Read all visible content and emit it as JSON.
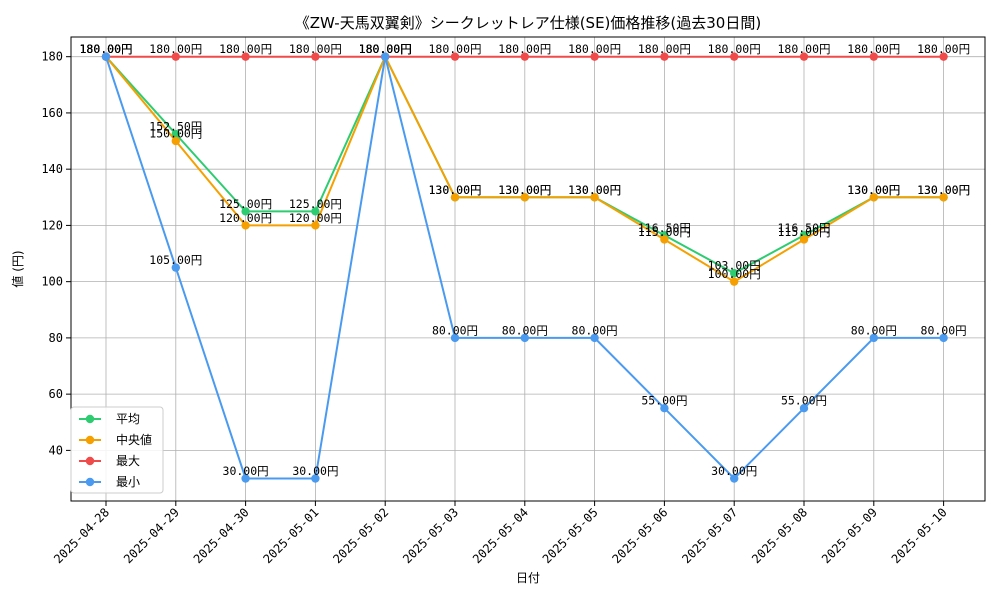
{
  "chart_data": {
    "type": "line",
    "title": "《ZW-天馬双翼剣》シークレットレア仕様(SE)価格推移(過去30日間)",
    "xlabel": "日付",
    "ylabel": "値 (円)",
    "x": [
      "2025-04-28",
      "2025-04-29",
      "2025-04-30",
      "2025-05-01",
      "2025-05-02",
      "2025-05-03",
      "2025-05-04",
      "2025-05-05",
      "2025-05-06",
      "2025-05-07",
      "2025-05-08",
      "2025-05-09",
      "2025-05-10"
    ],
    "ylim": [
      22,
      187
    ],
    "yticks": [
      40,
      60,
      80,
      100,
      120,
      140,
      160,
      180
    ],
    "grid": true,
    "legend_position": "lower-left",
    "value_suffix": "円",
    "series": [
      {
        "name": "平均",
        "color": "#2ecc71",
        "values": [
          180,
          152.5,
          125,
          125,
          180,
          130,
          130,
          130,
          116.5,
          103,
          116.5,
          130,
          130
        ]
      },
      {
        "name": "中央値",
        "color": "#f5a000",
        "values": [
          180,
          150,
          120,
          120,
          180,
          130,
          130,
          130,
          115,
          100,
          115,
          130,
          130
        ]
      },
      {
        "name": "最大",
        "color": "#f04a4a",
        "values": [
          180,
          180,
          180,
          180,
          180,
          180,
          180,
          180,
          180,
          180,
          180,
          180,
          180
        ]
      },
      {
        "name": "最小",
        "color": "#4a9af0",
        "values": [
          180,
          105,
          30,
          30,
          180,
          80,
          80,
          80,
          55,
          30,
          55,
          80,
          80
        ]
      }
    ]
  }
}
